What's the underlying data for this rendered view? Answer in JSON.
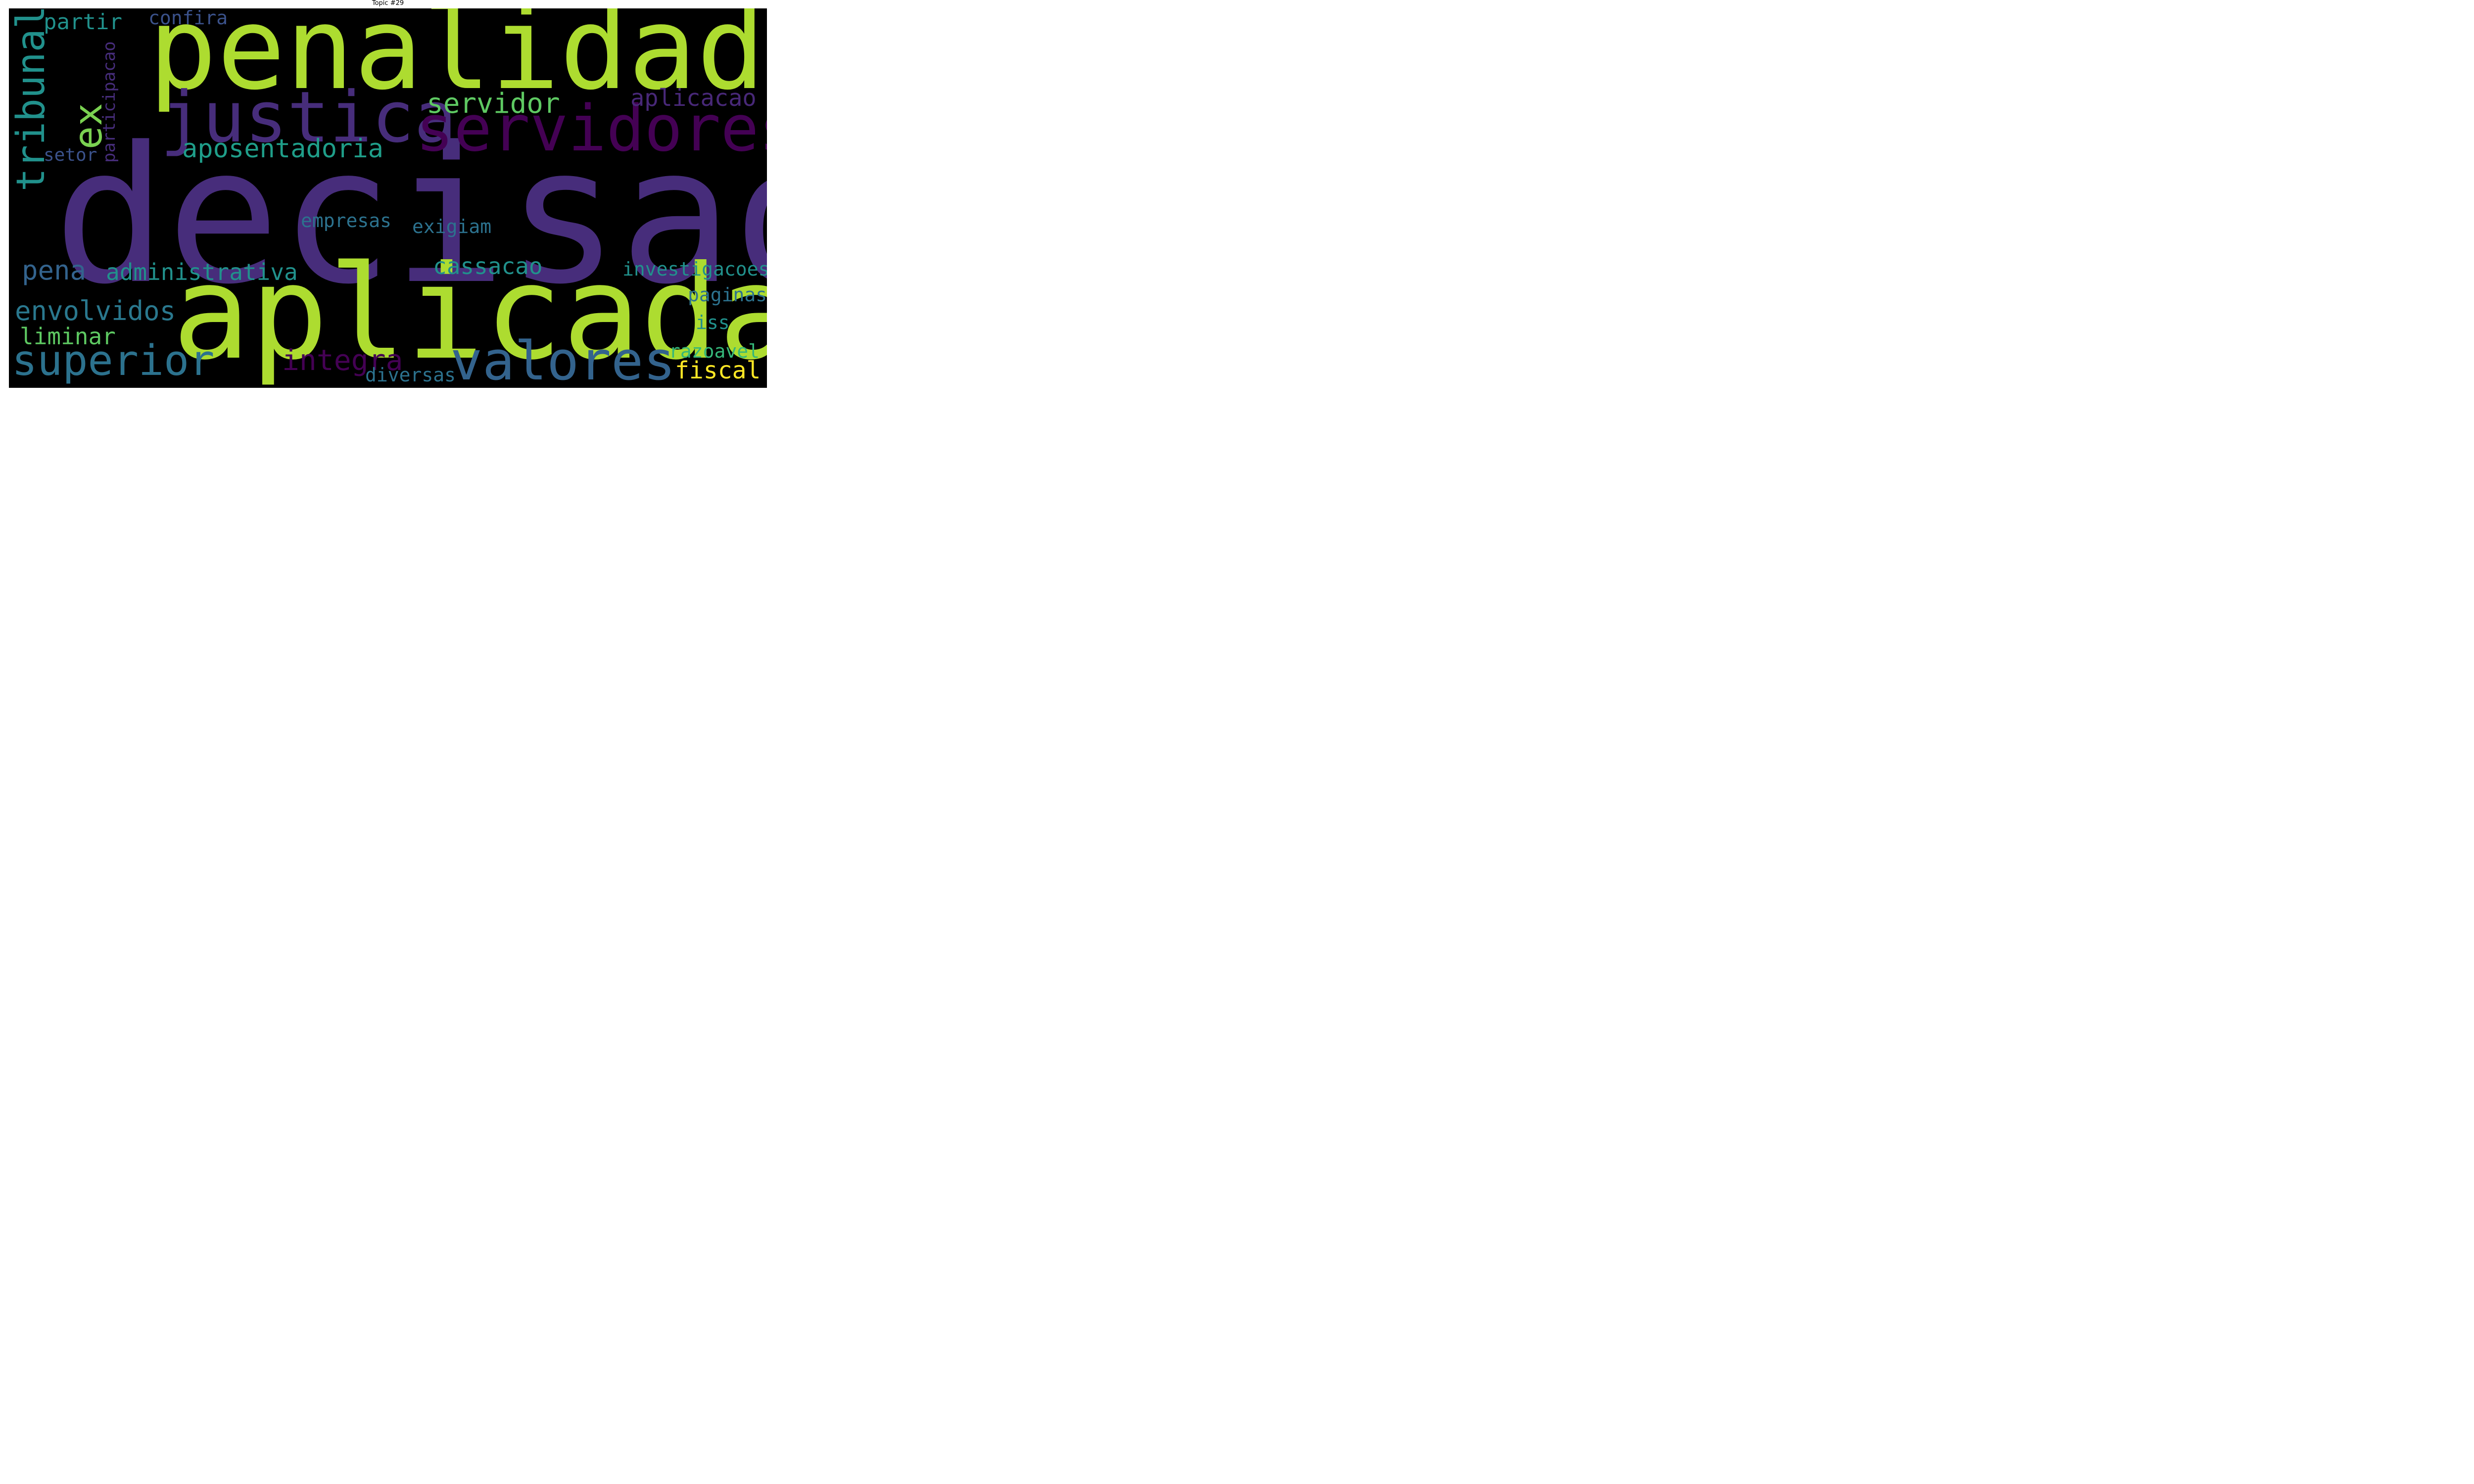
{
  "title": "Topic #29",
  "words": [
    {
      "key": "decisao",
      "text": "decisao",
      "color": "#472d7b"
    },
    {
      "key": "penalidade",
      "text": "penalidade",
      "color": "#addc30"
    },
    {
      "key": "aplicada",
      "text": "aplicada",
      "color": "#addc30"
    },
    {
      "key": "justica",
      "text": "justica",
      "color": "#472d7b"
    },
    {
      "key": "servidores",
      "text": "servidores",
      "color": "#440154"
    },
    {
      "key": "valores",
      "text": "valores",
      "color": "#33638d"
    },
    {
      "key": "superior",
      "text": "superior",
      "color": "#2c728e"
    },
    {
      "key": "tribunal",
      "text": "tribunal",
      "color": "#21918c"
    },
    {
      "key": "ex",
      "text": "ex",
      "color": "#7ad151"
    },
    {
      "key": "partir",
      "text": "partir",
      "color": "#21918c"
    },
    {
      "key": "confira",
      "text": "confira",
      "color": "#3b528b"
    },
    {
      "key": "participacao",
      "text": "participacao",
      "color": "#472d7b"
    },
    {
      "key": "servidor",
      "text": "servidor",
      "color": "#5ec962"
    },
    {
      "key": "aplicacao",
      "text": "aplicacao",
      "color": "#482878"
    },
    {
      "key": "aposentadoria",
      "text": "aposentadoria",
      "color": "#1f9e89"
    },
    {
      "key": "setor",
      "text": "setor",
      "color": "#3b528b"
    },
    {
      "key": "empresas",
      "text": "empresas",
      "color": "#2c728e"
    },
    {
      "key": "exigiam",
      "text": "exigiam",
      "color": "#2c728e"
    },
    {
      "key": "pena",
      "text": "pena",
      "color": "#33638d"
    },
    {
      "key": "administrativa",
      "text": "administrativa",
      "color": "#21918c"
    },
    {
      "key": "cassacao",
      "text": "cassacao",
      "color": "#21918c"
    },
    {
      "key": "investigacoes",
      "text": "investigacoes",
      "color": "#21918c"
    },
    {
      "key": "envolvidos",
      "text": "envolvidos",
      "color": "#2a788e"
    },
    {
      "key": "paginas",
      "text": "paginas",
      "color": "#2c728e"
    },
    {
      "key": "liminar",
      "text": "liminar",
      "color": "#5ec962"
    },
    {
      "key": "iss",
      "text": "iss",
      "color": "#21918c"
    },
    {
      "key": "integra",
      "text": "integra",
      "color": "#440154"
    },
    {
      "key": "razoavel",
      "text": "razoavel",
      "color": "#35b779"
    },
    {
      "key": "fiscal",
      "text": "fiscal",
      "color": "#fde725"
    },
    {
      "key": "diversas",
      "text": "diversas",
      "color": "#2c728e"
    }
  ]
}
